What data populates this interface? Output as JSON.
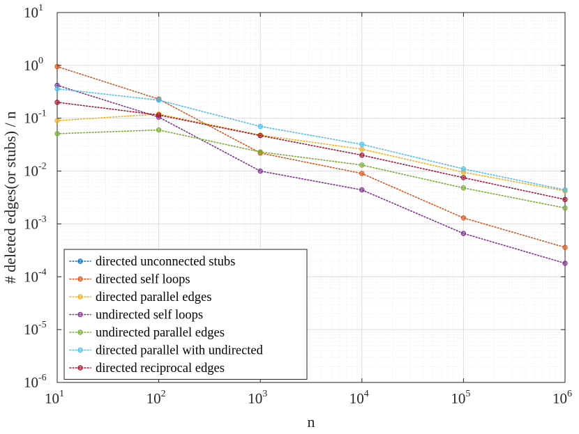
{
  "chart_data": {
    "type": "line",
    "xscale": "log",
    "yscale": "log",
    "title": "",
    "xlabel": "n",
    "ylabel": "# deleted edges(or stubs) / n",
    "xlim": [
      10,
      1000000
    ],
    "ylim": [
      1e-06,
      10
    ],
    "grid": true,
    "legend_position": "bottom-left",
    "x_ticks": [
      {
        "base": "10",
        "exp": "1"
      },
      {
        "base": "10",
        "exp": "2"
      },
      {
        "base": "10",
        "exp": "3"
      },
      {
        "base": "10",
        "exp": "4"
      },
      {
        "base": "10",
        "exp": "5"
      },
      {
        "base": "10",
        "exp": "6"
      }
    ],
    "y_ticks": [
      {
        "base": "10",
        "exp": "-6"
      },
      {
        "base": "10",
        "exp": "-5"
      },
      {
        "base": "10",
        "exp": "-4"
      },
      {
        "base": "10",
        "exp": "-3"
      },
      {
        "base": "10",
        "exp": "-2"
      },
      {
        "base": "10",
        "exp": "-1"
      },
      {
        "base": "10",
        "exp": "0"
      },
      {
        "base": "10",
        "exp": "1"
      }
    ],
    "x": [
      10,
      100,
      1000,
      10000,
      100000,
      1000000
    ],
    "series": [
      {
        "name": "directed unconnected stubs",
        "color": "#0072BD",
        "values": [
          null,
          null,
          null,
          null,
          null,
          null
        ]
      },
      {
        "name": "directed self loops",
        "color": "#D95319",
        "values": [
          0.95,
          0.23,
          0.022,
          0.009,
          0.0013,
          0.00036
        ]
      },
      {
        "name": "directed parallel edges",
        "color": "#EDB120",
        "values": [
          0.09,
          0.12,
          0.048,
          0.026,
          0.0095,
          0.0042
        ]
      },
      {
        "name": "undirected self loops",
        "color": "#7E2F8E",
        "values": [
          0.42,
          0.105,
          0.01,
          0.0044,
          0.00066,
          0.00018
        ]
      },
      {
        "name": "undirected parallel edges",
        "color": "#77AC30",
        "values": [
          0.051,
          0.06,
          0.023,
          0.013,
          0.0048,
          0.002
        ]
      },
      {
        "name": "directed parallel with undirected",
        "color": "#4DBEEE",
        "values": [
          0.36,
          0.22,
          0.07,
          0.032,
          0.011,
          0.0044
        ]
      },
      {
        "name": "directed reciprocal edges",
        "color": "#A2142F",
        "values": [
          0.2,
          0.115,
          0.047,
          0.02,
          0.0075,
          0.0029
        ]
      }
    ]
  }
}
